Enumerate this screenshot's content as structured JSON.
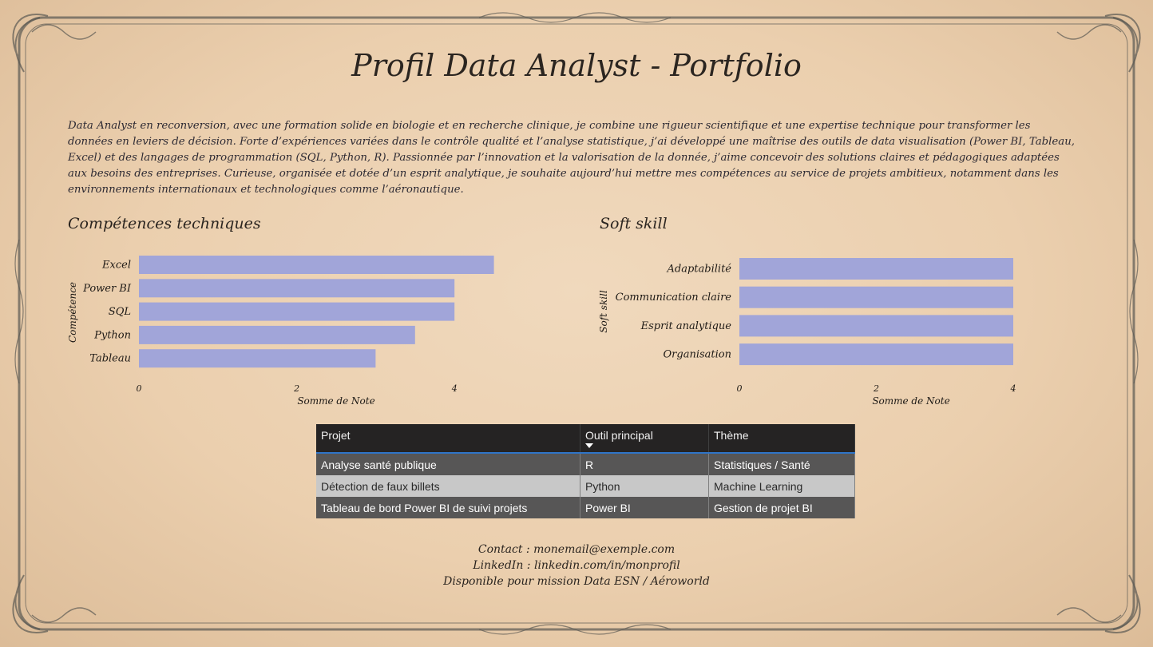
{
  "page": {
    "title": "Profil Data Analyst - Portfolio",
    "intro": "Data Analyst en reconversion, avec une formation solide en biologie et en recherche clinique, je combine une rigueur scientifique et une expertise technique pour transformer les données en leviers de décision. Forte d’expériences variées dans le contrôle qualité et l’analyse statistique, j’ai développé une maîtrise des outils de data visualisation (Power BI, Tableau, Excel) et des langages de programmation (SQL, Python, R). Passionnée par l’innovation et la valorisation de la donnée, j’aime concevoir des solutions claires et pédagogiques adaptées aux besoins des entreprises. Curieuse, organisée et dotée d’un esprit analytique, je souhaite aujourd’hui mettre mes compétences au service de projets ambitieux, notamment dans les environnements internationaux et technologiques comme l’aéronautique."
  },
  "chart_data": [
    {
      "type": "bar",
      "orientation": "horizontal",
      "title": "Compétences techniques",
      "categories": [
        "Excel",
        "Power BI",
        "SQL",
        "Python",
        "Tableau"
      ],
      "values": [
        4.5,
        4,
        4,
        3.5,
        3
      ],
      "xlabel": "Somme de Note",
      "ylabel": "Compétence",
      "xlim": [
        0,
        5
      ],
      "xticks": [
        0,
        2,
        4
      ],
      "bar_color": "#a1a5d9",
      "grid": false
    },
    {
      "type": "bar",
      "orientation": "horizontal",
      "title": "Soft skill",
      "categories": [
        "Adaptabilité",
        "Communication claire",
        "Esprit analytique",
        "Organisation"
      ],
      "values": [
        4,
        4,
        4,
        4
      ],
      "xlabel": "Somme de Note",
      "ylabel": "Soft skill",
      "xlim": [
        0,
        4
      ],
      "xticks": [
        0,
        2,
        4
      ],
      "bar_color": "#a1a5d9",
      "grid": false
    }
  ],
  "table": {
    "headers": [
      "Projet",
      "Outil principal",
      "Thème"
    ],
    "sorted_column": "Outil principal",
    "rows": [
      [
        "Analyse santé publique",
        "R",
        "Statistiques / Santé"
      ],
      [
        "Détection de faux billets",
        "Python",
        "Machine Learning"
      ],
      [
        "Tableau de bord Power BI de suivi projets",
        "Power BI",
        "Gestion de projet BI"
      ]
    ]
  },
  "contact": {
    "email_line": "Contact : monemail@exemple.com",
    "linkedin_line": "LinkedIn : linkedin.com/in/monprofil",
    "availability_line": "Disponible pour mission Data ESN / Aéroworld"
  }
}
